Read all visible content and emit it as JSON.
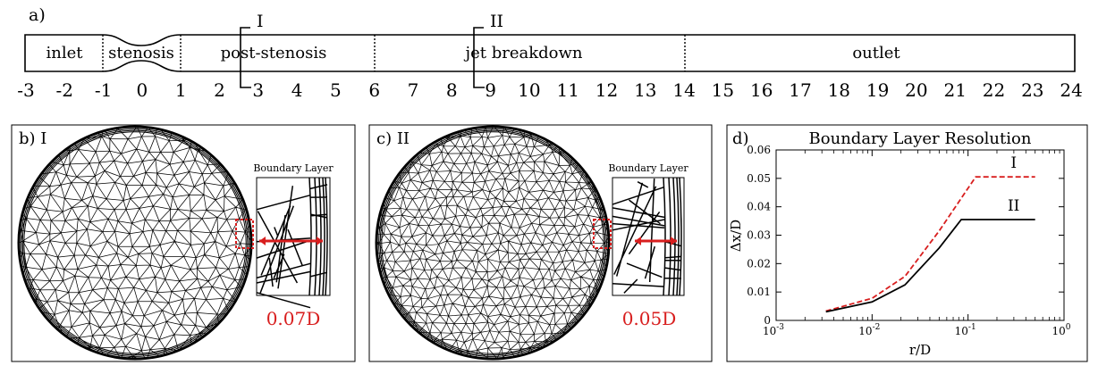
{
  "panel_a": {
    "label": "a)",
    "regions": [
      "inlet",
      "stenosis",
      "post-stenosis",
      "jet breakdown",
      "outlet"
    ],
    "section_markers": [
      "I",
      "II"
    ],
    "ticks": [
      "-3",
      "-2",
      "-1",
      "0",
      "1",
      "2",
      "3",
      "4",
      "5",
      "6",
      "7",
      "8",
      "9",
      "10",
      "11",
      "12",
      "13",
      "14",
      "15",
      "16",
      "17",
      "18",
      "19",
      "20",
      "21",
      "22",
      "23",
      "24"
    ]
  },
  "panel_b": {
    "label": "b) I",
    "inset_title": "Boundary Layer",
    "thickness": "0.07D"
  },
  "panel_c": {
    "label": "c) II",
    "inset_title": "Boundary Layer",
    "thickness": "0.05D"
  },
  "panel_d": {
    "label": "d)",
    "colors": {
      "I": "#d81e1e",
      "II": "#000000"
    },
    "chart_data": {
      "type": "line",
      "title": "Boundary Layer Resolution",
      "xlabel": "r/D",
      "ylabel": "Δx/D",
      "xscale": "log",
      "xlim": [
        0.001,
        1
      ],
      "ylim": [
        0,
        0.06
      ],
      "xticks": [
        "10-3",
        "10-2",
        "10-1",
        "100"
      ],
      "yticks": [
        "0",
        "0.01",
        "0.02",
        "0.03",
        "0.04",
        "0.05",
        "0.06"
      ],
      "series": [
        {
          "name": "I",
          "style": "dashed",
          "x": [
            0.0033,
            0.01,
            0.022,
            0.05,
            0.12,
            0.5
          ],
          "y": [
            0.0033,
            0.0078,
            0.0155,
            0.0315,
            0.0505,
            0.0505
          ]
        },
        {
          "name": "II",
          "style": "solid",
          "x": [
            0.0033,
            0.01,
            0.022,
            0.05,
            0.085,
            0.5
          ],
          "y": [
            0.003,
            0.0065,
            0.0125,
            0.0255,
            0.0355,
            0.0355
          ]
        }
      ]
    }
  }
}
